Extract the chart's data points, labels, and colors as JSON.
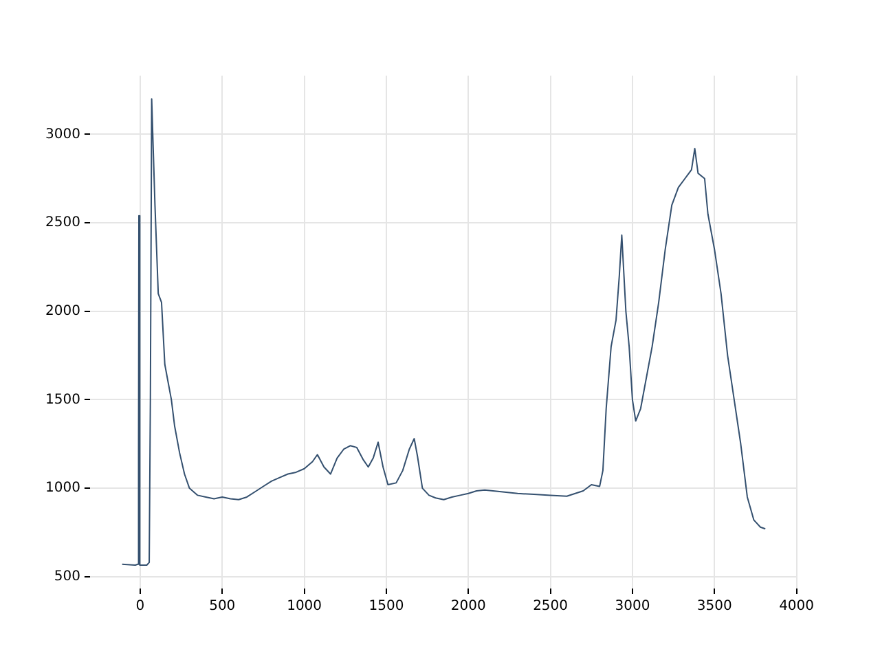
{
  "chart_data": {
    "type": "line",
    "xlim": [
      -306,
      4006
    ],
    "ylim": [
      433,
      3332
    ],
    "xticks": [
      0,
      500,
      1000,
      1500,
      2000,
      2500,
      3000,
      3500,
      4000
    ],
    "yticks": [
      500,
      1000,
      1500,
      2000,
      2500,
      3000
    ],
    "grid": true,
    "legend": false,
    "marker": "none",
    "line_style": "solid",
    "x": [
      -110,
      -30,
      -15,
      -10,
      -8,
      -5,
      0,
      10,
      40,
      55,
      62,
      70,
      80,
      90,
      110,
      130,
      150,
      170,
      190,
      210,
      240,
      270,
      300,
      350,
      400,
      450,
      500,
      550,
      600,
      650,
      700,
      750,
      800,
      850,
      900,
      950,
      1000,
      1050,
      1080,
      1120,
      1160,
      1200,
      1240,
      1280,
      1320,
      1360,
      1390,
      1420,
      1450,
      1480,
      1510,
      1560,
      1600,
      1640,
      1670,
      1690,
      1720,
      1760,
      1800,
      1850,
      1900,
      1950,
      2000,
      2050,
      2100,
      2200,
      2300,
      2400,
      2500,
      2600,
      2700,
      2750,
      2800,
      2820,
      2840,
      2870,
      2900,
      2920,
      2935,
      2960,
      2980,
      3000,
      3020,
      3050,
      3080,
      3120,
      3160,
      3200,
      3240,
      3280,
      3320,
      3360,
      3380,
      3400,
      3440,
      3460,
      3500,
      3540,
      3580,
      3620,
      3660,
      3700,
      3740,
      3780,
      3810
    ],
    "series": [
      {
        "color": "#34506f",
        "values": [
          570,
          565,
          570,
          1200,
          2540,
          570,
          565,
          565,
          565,
          580,
          1500,
          3200,
          2900,
          2600,
          2100,
          2050,
          1700,
          1600,
          1500,
          1350,
          1200,
          1080,
          1000,
          960,
          950,
          940,
          950,
          940,
          935,
          950,
          980,
          1010,
          1040,
          1060,
          1080,
          1090,
          1110,
          1150,
          1190,
          1120,
          1080,
          1170,
          1220,
          1240,
          1230,
          1160,
          1120,
          1170,
          1260,
          1120,
          1020,
          1030,
          1100,
          1220,
          1280,
          1180,
          1000,
          960,
          945,
          935,
          950,
          960,
          970,
          985,
          990,
          980,
          970,
          965,
          960,
          955,
          985,
          1020,
          1010,
          1100,
          1450,
          1800,
          1950,
          2200,
          2430,
          2000,
          1800,
          1500,
          1380,
          1450,
          1600,
          1800,
          2050,
          2350,
          2600,
          2700,
          2750,
          2800,
          2920,
          2780,
          2750,
          2550,
          2350,
          2100,
          1750,
          1500,
          1250,
          950,
          820,
          780,
          770
        ]
      }
    ]
  }
}
